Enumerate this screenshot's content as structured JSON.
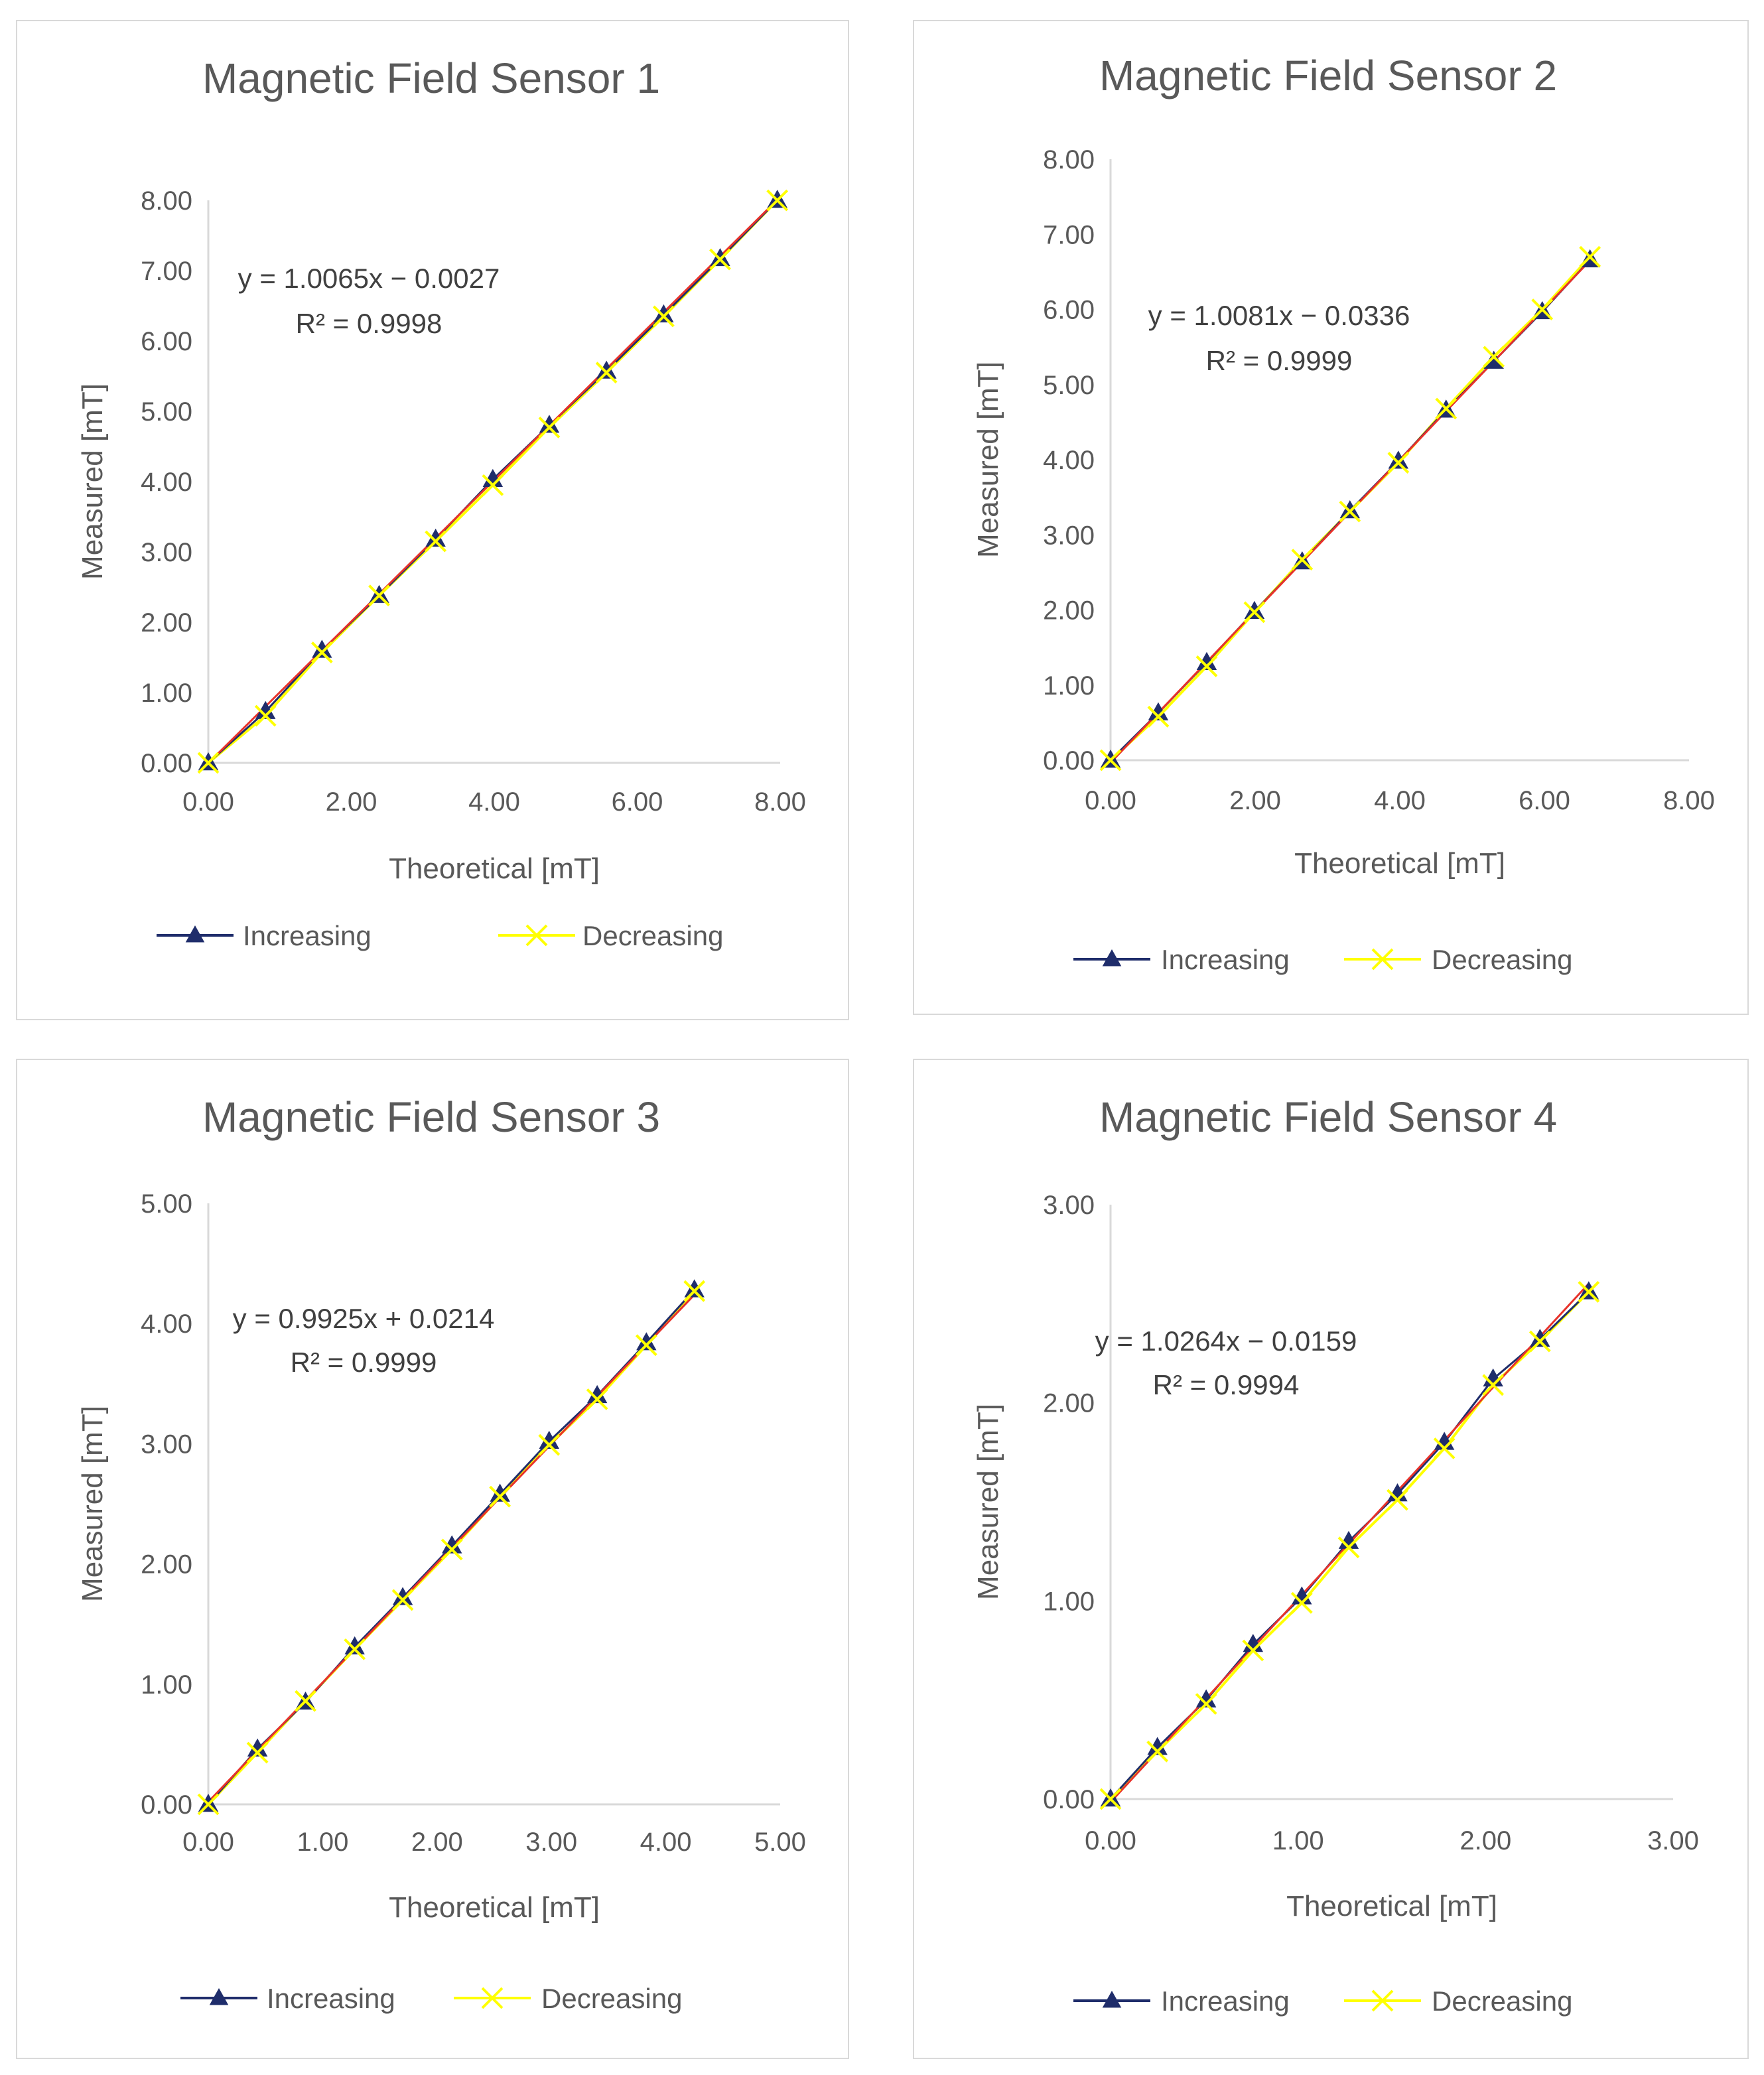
{
  "colors": {
    "increasing": "#1f2d6b",
    "decreasing": "#ffff00",
    "trendline": "#e8322a",
    "axis": "#d9d9d9",
    "text": "#595959"
  },
  "legend_labels": {
    "increasing": "Increasing",
    "decreasing": "Decreasing"
  },
  "chart_data": [
    {
      "type": "scatter",
      "title": "Magnetic Field Sensor 1",
      "xlabel": "Theoretical [mT]",
      "ylabel": "Measured [mT]",
      "xlim": [
        0,
        8
      ],
      "ylim": [
        0,
        8
      ],
      "xticks": [
        "0.00",
        "2.00",
        "4.00",
        "6.00",
        "8.00"
      ],
      "yticks": [
        "0.00",
        "1.00",
        "2.00",
        "3.00",
        "4.00",
        "5.00",
        "6.00",
        "7.00",
        "8.00"
      ],
      "equation": "y = 1.0065x − 0.0027",
      "r2": "R² = 0.9998",
      "trend": {
        "slope": 1.0065,
        "intercept": -0.0027
      },
      "series": [
        {
          "name": "Increasing",
          "x": [
            0,
            0.8,
            1.59,
            2.39,
            3.18,
            3.98,
            4.77,
            5.57,
            6.37,
            7.16,
            7.96
          ],
          "y": [
            0,
            0.73,
            1.6,
            2.38,
            3.18,
            4.03,
            4.8,
            5.57,
            6.37,
            7.17,
            8.0
          ]
        },
        {
          "name": "Decreasing",
          "x": [
            0,
            0.8,
            1.59,
            2.39,
            3.18,
            3.98,
            4.77,
            5.57,
            6.37,
            7.16,
            7.96
          ],
          "y": [
            0,
            0.67,
            1.57,
            2.38,
            3.15,
            3.95,
            4.77,
            5.55,
            6.35,
            7.16,
            8.0
          ]
        }
      ]
    },
    {
      "type": "scatter",
      "title": "Magnetic Field Sensor 2",
      "xlabel": "Theoretical [mT]",
      "ylabel": "Measured [mT]",
      "xlim": [
        0,
        8
      ],
      "ylim": [
        0,
        8
      ],
      "xticks": [
        "0.00",
        "2.00",
        "4.00",
        "6.00",
        "8.00"
      ],
      "yticks": [
        "0.00",
        "1.00",
        "2.00",
        "3.00",
        "4.00",
        "5.00",
        "6.00",
        "7.00",
        "8.00"
      ],
      "equation": "y = 1.0081x − 0.0336",
      "r2": "R² = 0.9999",
      "trend": {
        "slope": 1.0081,
        "intercept": -0.0336
      },
      "series": [
        {
          "name": "Increasing",
          "x": [
            0,
            0.66,
            1.33,
            1.99,
            2.65,
            3.31,
            3.98,
            4.64,
            5.3,
            5.97,
            6.63
          ],
          "y": [
            0,
            0.63,
            1.3,
            1.98,
            2.64,
            3.32,
            3.98,
            4.66,
            5.31,
            5.97,
            6.66
          ]
        },
        {
          "name": "Decreasing",
          "x": [
            0,
            0.66,
            1.33,
            1.99,
            2.65,
            3.31,
            3.98,
            4.64,
            5.3,
            5.97,
            6.63
          ],
          "y": [
            0,
            0.58,
            1.25,
            1.97,
            2.67,
            3.31,
            3.96,
            4.68,
            5.37,
            6.0,
            6.7
          ]
        }
      ]
    },
    {
      "type": "scatter",
      "title": "Magnetic Field Sensor 3",
      "xlabel": "Theoretical [mT]",
      "ylabel": "Measured [mT]",
      "xlim": [
        0,
        5
      ],
      "ylim": [
        0,
        5
      ],
      "xticks": [
        "0.00",
        "1.00",
        "2.00",
        "3.00",
        "4.00",
        "5.00"
      ],
      "yticks": [
        "0.00",
        "1.00",
        "2.00",
        "3.00",
        "4.00",
        "5.00"
      ],
      "equation": "y = 0.9925x + 0.0214",
      "r2": "R² = 0.9999",
      "trend": {
        "slope": 0.9925,
        "intercept": 0.0214
      },
      "series": [
        {
          "name": "Increasing",
          "x": [
            0,
            0.43,
            0.85,
            1.28,
            1.7,
            2.13,
            2.55,
            2.98,
            3.4,
            3.83,
            4.25
          ],
          "y": [
            0,
            0.46,
            0.85,
            1.31,
            1.72,
            2.15,
            2.58,
            3.02,
            3.4,
            3.84,
            4.28
          ]
        },
        {
          "name": "Decreasing",
          "x": [
            0,
            0.43,
            0.85,
            1.28,
            1.7,
            2.13,
            2.55,
            2.98,
            3.4,
            3.83,
            4.25
          ],
          "y": [
            0,
            0.43,
            0.86,
            1.29,
            1.7,
            2.12,
            2.56,
            2.99,
            3.37,
            3.82,
            4.27
          ]
        }
      ]
    },
    {
      "type": "scatter",
      "title": "Magnetic Field Sensor 4",
      "xlabel": "Theoretical [mT]",
      "ylabel": "Measured [mT]",
      "xlim": [
        0,
        3
      ],
      "ylim": [
        0,
        3
      ],
      "xticks": [
        "0.00",
        "1.00",
        "2.00",
        "3.00"
      ],
      "yticks": [
        "0.00",
        "1.00",
        "2.00",
        "3.00"
      ],
      "equation": "y = 1.0264x − 0.0159",
      "r2": "R² = 0.9994",
      "trend": {
        "slope": 1.0264,
        "intercept": -0.0159
      },
      "series": [
        {
          "name": "Increasing",
          "x": [
            0,
            0.25,
            0.51,
            0.76,
            1.02,
            1.27,
            1.53,
            1.78,
            2.04,
            2.29,
            2.55
          ],
          "y": [
            0,
            0.26,
            0.5,
            0.78,
            1.02,
            1.3,
            1.54,
            1.8,
            2.12,
            2.32,
            2.56
          ]
        },
        {
          "name": "Decreasing",
          "x": [
            0,
            0.25,
            0.51,
            0.76,
            1.02,
            1.27,
            1.53,
            1.78,
            2.04,
            2.29,
            2.55
          ],
          "y": [
            0,
            0.24,
            0.48,
            0.75,
            0.99,
            1.27,
            1.51,
            1.77,
            2.09,
            2.31,
            2.56
          ]
        }
      ]
    }
  ]
}
